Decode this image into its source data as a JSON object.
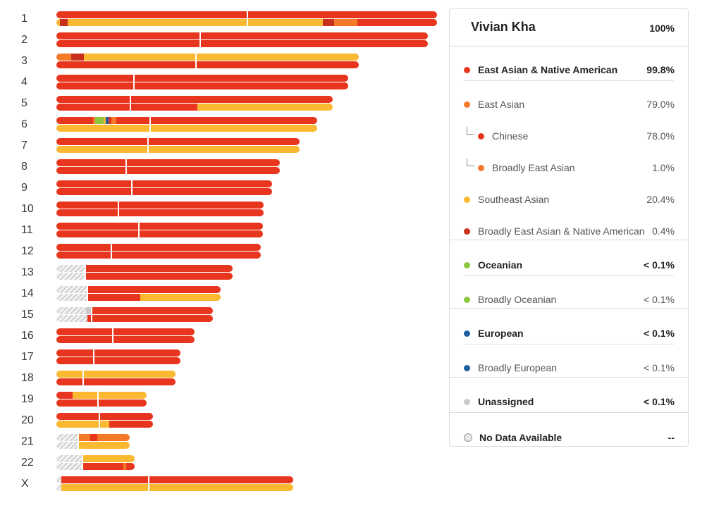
{
  "colors": {
    "chinese": "#e8361e",
    "broad_ea_na": "#c8301c",
    "east_asian_broad": "#f47a2a",
    "southeast_asian": "#fbb931",
    "oceanian": "#8cc63e",
    "european": "#1f5fa0",
    "unassigned": "#c9c9c9",
    "nodata": "#d4d4d4"
  },
  "chromosomes": [
    {
      "label": "1",
      "length": 540,
      "centromere": 270,
      "strands": [
        [
          [
            "chinese",
            1.0
          ]
        ],
        [
          [
            "southeast_asian",
            0.01
          ],
          [
            "broad_ea_na",
            0.02
          ],
          [
            "southeast_asian",
            0.67
          ],
          [
            "broad_ea_na",
            0.03
          ],
          [
            "east_asian_broad",
            0.06
          ],
          [
            "chinese",
            0.21
          ]
        ]
      ]
    },
    {
      "label": "2",
      "length": 527,
      "centromere": 203,
      "strands": [
        [
          [
            "chinese",
            1.0
          ]
        ],
        [
          [
            "chinese",
            1.0
          ]
        ]
      ]
    },
    {
      "label": "3",
      "length": 429,
      "centromere": 197,
      "strands": [
        [
          [
            "east_asian_broad",
            0.05
          ],
          [
            "broad_ea_na",
            0.04
          ],
          [
            "southeast_asian",
            0.91
          ]
        ],
        [
          [
            "chinese",
            1.0
          ]
        ]
      ]
    },
    {
      "label": "4",
      "length": 414,
      "centromere": 109,
      "strands": [
        [
          [
            "chinese",
            1.0
          ]
        ],
        [
          [
            "chinese",
            1.0
          ]
        ]
      ]
    },
    {
      "label": "5",
      "length": 392,
      "centromere": 104,
      "strands": [
        [
          [
            "chinese",
            1.0
          ]
        ],
        [
          [
            "chinese",
            0.51
          ],
          [
            "southeast_asian",
            0.49
          ]
        ]
      ]
    },
    {
      "label": "6",
      "length": 370,
      "centromere": 132,
      "strands": [
        [
          [
            "chinese",
            0.14
          ],
          [
            "east_asian_broad",
            0.01
          ],
          [
            "oceanian",
            0.03
          ],
          [
            "southeast_asian",
            0.01
          ],
          [
            "european",
            0.01
          ],
          [
            "chinese",
            0.01
          ],
          [
            "east_asian_broad",
            0.02
          ],
          [
            "chinese",
            0.77
          ]
        ],
        [
          [
            "southeast_asian",
            1.0
          ]
        ]
      ]
    },
    {
      "label": "7",
      "length": 345,
      "centromere": 129,
      "strands": [
        [
          [
            "chinese",
            1.0
          ]
        ],
        [
          [
            "southeast_asian",
            1.0
          ]
        ]
      ]
    },
    {
      "label": "8",
      "length": 317,
      "centromere": 98,
      "strands": [
        [
          [
            "chinese",
            1.0
          ]
        ],
        [
          [
            "chinese",
            1.0
          ]
        ]
      ]
    },
    {
      "label": "9",
      "length": 306,
      "centromere": 106,
      "strands": [
        [
          [
            "chinese",
            1.0
          ]
        ],
        [
          [
            "chinese",
            1.0
          ]
        ]
      ]
    },
    {
      "label": "10",
      "length": 294,
      "centromere": 87,
      "strands": [
        [
          [
            "chinese",
            1.0
          ]
        ],
        [
          [
            "chinese",
            1.0
          ]
        ]
      ]
    },
    {
      "label": "11",
      "length": 293,
      "centromere": 116,
      "strands": [
        [
          [
            "chinese",
            1.0
          ]
        ],
        [
          [
            "chinese",
            1.0
          ]
        ]
      ]
    },
    {
      "label": "12",
      "length": 290,
      "centromere": 77,
      "strands": [
        [
          [
            "chinese",
            1.0
          ]
        ],
        [
          [
            "chinese",
            1.0
          ]
        ]
      ]
    },
    {
      "label": "13",
      "length": 250,
      "centromere": 40,
      "strands": [
        [
          [
            "nodata",
            0.16
          ],
          [
            "chinese",
            0.84
          ]
        ],
        [
          [
            "nodata",
            0.16
          ],
          [
            "chinese",
            0.84
          ]
        ]
      ]
    },
    {
      "label": "14",
      "length": 233,
      "centromere": 43,
      "strands": [
        [
          [
            "nodata",
            0.19
          ],
          [
            "chinese",
            0.81
          ]
        ],
        [
          [
            "nodata",
            0.19
          ],
          [
            "chinese",
            0.32
          ],
          [
            "southeast_asian",
            0.49
          ]
        ]
      ]
    },
    {
      "label": "15",
      "length": 222,
      "centromere": 49,
      "strands": [
        [
          [
            "nodata",
            0.19
          ],
          [
            "unassigned",
            0.03
          ],
          [
            "chinese",
            0.78
          ]
        ],
        [
          [
            "nodata",
            0.2
          ],
          [
            "chinese",
            0.8
          ]
        ]
      ]
    },
    {
      "label": "16",
      "length": 196,
      "centromere": 79,
      "strands": [
        [
          [
            "chinese",
            1.0
          ]
        ],
        [
          [
            "chinese",
            1.0
          ]
        ]
      ]
    },
    {
      "label": "17",
      "length": 176,
      "centromere": 52,
      "strands": [
        [
          [
            "chinese",
            1.0
          ]
        ],
        [
          [
            "chinese",
            1.0
          ]
        ]
      ]
    },
    {
      "label": "18",
      "length": 169,
      "centromere": 37,
      "strands": [
        [
          [
            "southeast_asian",
            1.0
          ]
        ],
        [
          [
            "chinese",
            1.0
          ]
        ]
      ]
    },
    {
      "label": "19",
      "length": 128,
      "centromere": 58,
      "strands": [
        [
          [
            "chinese",
            0.18
          ],
          [
            "southeast_asian",
            0.82
          ]
        ],
        [
          [
            "chinese",
            1.0
          ]
        ]
      ]
    },
    {
      "label": "20",
      "length": 137,
      "centromere": 60,
      "strands": [
        [
          [
            "chinese",
            1.0
          ]
        ],
        [
          [
            "southeast_asian",
            0.55
          ],
          [
            "chinese",
            0.45
          ]
        ]
      ]
    },
    {
      "label": "21",
      "length": 104,
      "centromere": 30,
      "strands": [
        [
          [
            "nodata",
            0.29
          ],
          [
            "east_asian_broad",
            0.17
          ],
          [
            "chinese",
            0.1
          ],
          [
            "east_asian_broad",
            0.44
          ]
        ],
        [
          [
            "nodata",
            0.29
          ],
          [
            "southeast_asian",
            0.71
          ]
        ]
      ]
    },
    {
      "label": "22",
      "length": 111,
      "centromere": 36,
      "strands": [
        [
          [
            "nodata",
            0.32
          ],
          [
            "southeast_asian",
            0.68
          ]
        ],
        [
          [
            "nodata",
            0.32
          ],
          [
            "chinese",
            0.54
          ],
          [
            "east_asian_broad",
            0.03
          ],
          [
            "chinese",
            0.11
          ]
        ]
      ]
    },
    {
      "label": "X",
      "length": 336,
      "centromere": 130,
      "strands": [
        [
          [
            "nodata",
            0.02
          ],
          [
            "chinese",
            0.98
          ]
        ],
        [
          [
            "nodata",
            0.02
          ],
          [
            "southeast_asian",
            0.98
          ]
        ]
      ]
    }
  ],
  "panel": {
    "name": "Vivian Kha",
    "total": "100%",
    "rows": [
      {
        "label": "East Asian & Native American",
        "pct": "99.8%",
        "color": "chinese",
        "bold": true
      },
      {
        "label": "East Asian",
        "pct": "79.0%",
        "color": "east_asian_broad"
      },
      {
        "label": "Chinese",
        "pct": "78.0%",
        "color": "chinese",
        "child": true
      },
      {
        "label": "Broadly East Asian",
        "pct": "1.0%",
        "color": "east_asian_broad",
        "child": true
      },
      {
        "label": "Southeast Asian",
        "pct": "20.4%",
        "color": "southeast_asian"
      },
      {
        "label": "Broadly East Asian & Native American",
        "pct": "0.4%",
        "color": "broad_ea_na"
      },
      {
        "label": "Oceanian",
        "pct": "< 0.1%",
        "color": "oceanian",
        "bold": true
      },
      {
        "label": "Broadly Oceanian",
        "pct": "< 0.1%",
        "color": "oceanian"
      },
      {
        "label": "European",
        "pct": "< 0.1%",
        "color": "european",
        "bold": true
      },
      {
        "label": "Broadly European",
        "pct": "< 0.1%",
        "color": "european"
      },
      {
        "label": "Unassigned",
        "pct": "< 0.1%",
        "color": "unassigned",
        "bold": true
      },
      {
        "label": "No Data Available",
        "pct": "--",
        "icon": "nodata-icon",
        "bold": true
      }
    ]
  }
}
